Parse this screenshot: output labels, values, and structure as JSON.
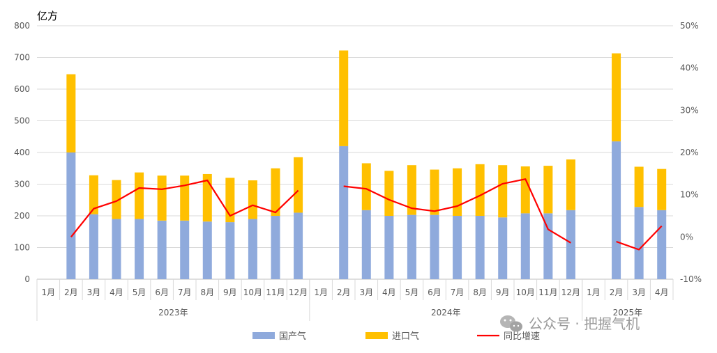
{
  "chart_data": {
    "type": "bar",
    "stacked": true,
    "y_unit": "亿方",
    "ylim": [
      0,
      800
    ],
    "y_ticks": [
      "0",
      "100",
      "200",
      "300",
      "400",
      "500",
      "600",
      "700",
      "800"
    ],
    "y2lim": [
      -10,
      50
    ],
    "y2_ticks": [
      "-10%",
      "0%",
      "10%",
      "20%",
      "30%",
      "40%",
      "50%"
    ],
    "grid": true,
    "legend_position": "bottom",
    "groups": [
      {
        "label": "2023年",
        "categories": [
          "1月",
          "2月",
          "3月",
          "4月",
          "5月",
          "6月",
          "7月",
          "8月",
          "9月",
          "10月",
          "11月",
          "12月"
        ]
      },
      {
        "label": "2024年",
        "categories": [
          "1月",
          "2月",
          "3月",
          "4月",
          "5月",
          "6月",
          "7月",
          "8月",
          "9月",
          "10月",
          "11月",
          "12月"
        ]
      },
      {
        "label": "2025年",
        "categories": [
          "1月",
          "2月",
          "3月",
          "4月"
        ]
      }
    ],
    "series": [
      {
        "name": "国产气",
        "kind": "bar",
        "color": "#8FAADC",
        "values": [
          null,
          400,
          205,
          190,
          190,
          185,
          185,
          182,
          180,
          190,
          200,
          210,
          null,
          420,
          218,
          200,
          203,
          203,
          200,
          200,
          195,
          208,
          208,
          218,
          null,
          435,
          228,
          218
        ]
      },
      {
        "name": "进口气",
        "kind": "bar",
        "color": "#FFC000",
        "values": [
          null,
          247,
          123,
          123,
          147,
          142,
          142,
          150,
          140,
          122,
          150,
          175,
          null,
          302,
          148,
          142,
          157,
          143,
          150,
          163,
          165,
          148,
          150,
          160,
          null,
          278,
          127,
          130
        ]
      },
      {
        "name": "同比增速",
        "kind": "line",
        "axis": "right",
        "color": "#FF0000",
        "values": [
          null,
          0.0,
          6.7,
          8.5,
          11.6,
          11.3,
          12.2,
          13.4,
          5.0,
          7.5,
          5.8,
          11.0,
          null,
          12.0,
          11.4,
          8.8,
          6.8,
          6.1,
          7.3,
          9.8,
          12.6,
          13.7,
          1.8,
          -1.4,
          null,
          -1.1,
          -3.0,
          2.6
        ]
      }
    ]
  },
  "watermark": {
    "text": "公众号 · 把握气机"
  }
}
